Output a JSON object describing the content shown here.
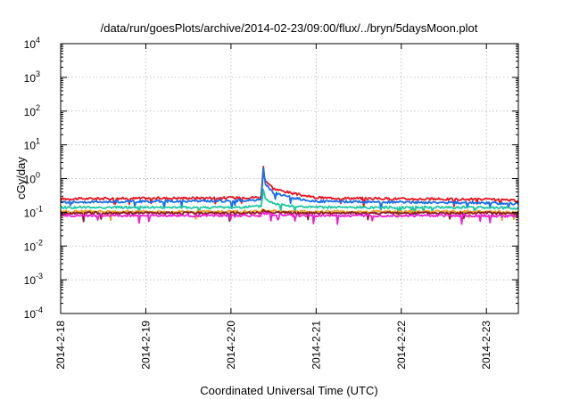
{
  "chart_data": {
    "type": "line",
    "title": "/data/run/goesPlots/archive/2014-02-23/09:00/flux/../bryn/5daysMoon.plot",
    "xlabel": "Coordinated Universal Time (UTC)",
    "ylabel": "cGy/day",
    "yscale": "log",
    "grid": true,
    "x_ticks": [
      "2014-2-18",
      "2014-2-19",
      "2014-2-20",
      "2014-2-21",
      "2014-2-22",
      "2014-2-23"
    ],
    "xlim": [
      "2014-02-18T00:00",
      "2014-02-23T09:00"
    ],
    "y_ticks": [
      {
        "base": "10",
        "exp": "4"
      },
      {
        "base": "10",
        "exp": "3"
      },
      {
        "base": "10",
        "exp": "2"
      },
      {
        "base": "10",
        "exp": "1"
      },
      {
        "base": "10",
        "exp": "0"
      },
      {
        "base": "10",
        "exp": "-1"
      },
      {
        "base": "10",
        "exp": "-2"
      },
      {
        "base": "10",
        "exp": "-3"
      },
      {
        "base": "10",
        "exp": "-4"
      }
    ],
    "ylim": [
      0.0001,
      10000
    ],
    "series": [
      {
        "color": "#e8141e",
        "x": [
          "2014-02-18T00:00",
          "2014-02-19T00:00",
          "2014-02-20T00:00",
          "2014-02-20T08:30",
          "2014-02-20T09:10",
          "2014-02-20T09:40",
          "2014-02-20T12:00",
          "2014-02-20T18:00",
          "2014-02-21T00:00",
          "2014-02-22T00:00",
          "2014-02-23T00:00",
          "2014-02-23T09:00"
        ],
        "values": [
          0.25,
          0.26,
          0.27,
          0.28,
          2.8,
          0.9,
          0.5,
          0.35,
          0.27,
          0.25,
          0.24,
          0.22
        ]
      },
      {
        "color": "#1a6fe8",
        "x": [
          "2014-02-18T00:00",
          "2014-02-19T00:00",
          "2014-02-20T00:00",
          "2014-02-20T08:30",
          "2014-02-20T09:10",
          "2014-02-20T09:40",
          "2014-02-20T12:00",
          "2014-02-20T18:00",
          "2014-02-21T00:00",
          "2014-02-22T00:00",
          "2014-02-23T00:00",
          "2014-02-23T09:00"
        ],
        "values": [
          0.2,
          0.21,
          0.22,
          0.23,
          2.2,
          0.7,
          0.38,
          0.26,
          0.21,
          0.2,
          0.19,
          0.18
        ]
      },
      {
        "color": "#22c7a0",
        "x": [
          "2014-02-18T00:00",
          "2014-02-19T00:00",
          "2014-02-20T00:00",
          "2014-02-20T08:30",
          "2014-02-20T09:10",
          "2014-02-20T09:40",
          "2014-02-20T12:00",
          "2014-02-20T18:00",
          "2014-02-21T00:00",
          "2014-02-22T00:00",
          "2014-02-23T00:00",
          "2014-02-23T09:00"
        ],
        "values": [
          0.14,
          0.14,
          0.14,
          0.15,
          0.5,
          0.25,
          0.18,
          0.15,
          0.14,
          0.14,
          0.14,
          0.13
        ]
      },
      {
        "color": "#e6a020",
        "x": [
          "2014-02-18T00:00",
          "2014-02-19T00:00",
          "2014-02-20T00:00",
          "2014-02-20T08:30",
          "2014-02-20T09:10",
          "2014-02-20T09:40",
          "2014-02-20T12:00",
          "2014-02-20T18:00",
          "2014-02-21T00:00",
          "2014-02-22T00:00",
          "2014-02-23T00:00",
          "2014-02-23T09:00"
        ],
        "values": [
          0.105,
          0.105,
          0.105,
          0.105,
          0.13,
          0.115,
          0.11,
          0.105,
          0.105,
          0.105,
          0.105,
          0.1
        ]
      },
      {
        "color": "#8b1a2a",
        "x": [
          "2014-02-18T00:00",
          "2014-02-19T00:00",
          "2014-02-20T00:00",
          "2014-02-20T08:30",
          "2014-02-20T09:10",
          "2014-02-20T09:40",
          "2014-02-20T12:00",
          "2014-02-20T18:00",
          "2014-02-21T00:00",
          "2014-02-22T00:00",
          "2014-02-23T00:00",
          "2014-02-23T09:00"
        ],
        "values": [
          0.095,
          0.095,
          0.095,
          0.095,
          0.12,
          0.105,
          0.1,
          0.095,
          0.095,
          0.095,
          0.095,
          0.09
        ]
      },
      {
        "color": "#ee22cc",
        "x": [
          "2014-02-18T00:00",
          "2014-02-19T00:00",
          "2014-02-20T00:00",
          "2014-02-20T08:30",
          "2014-02-20T09:10",
          "2014-02-20T09:40",
          "2014-02-20T12:00",
          "2014-02-20T18:00",
          "2014-02-21T00:00",
          "2014-02-22T00:00",
          "2014-02-23T00:00",
          "2014-02-23T09:00"
        ],
        "values": [
          0.08,
          0.08,
          0.08,
          0.08,
          0.1,
          0.09,
          0.085,
          0.08,
          0.08,
          0.08,
          0.08,
          0.075
        ]
      }
    ]
  }
}
